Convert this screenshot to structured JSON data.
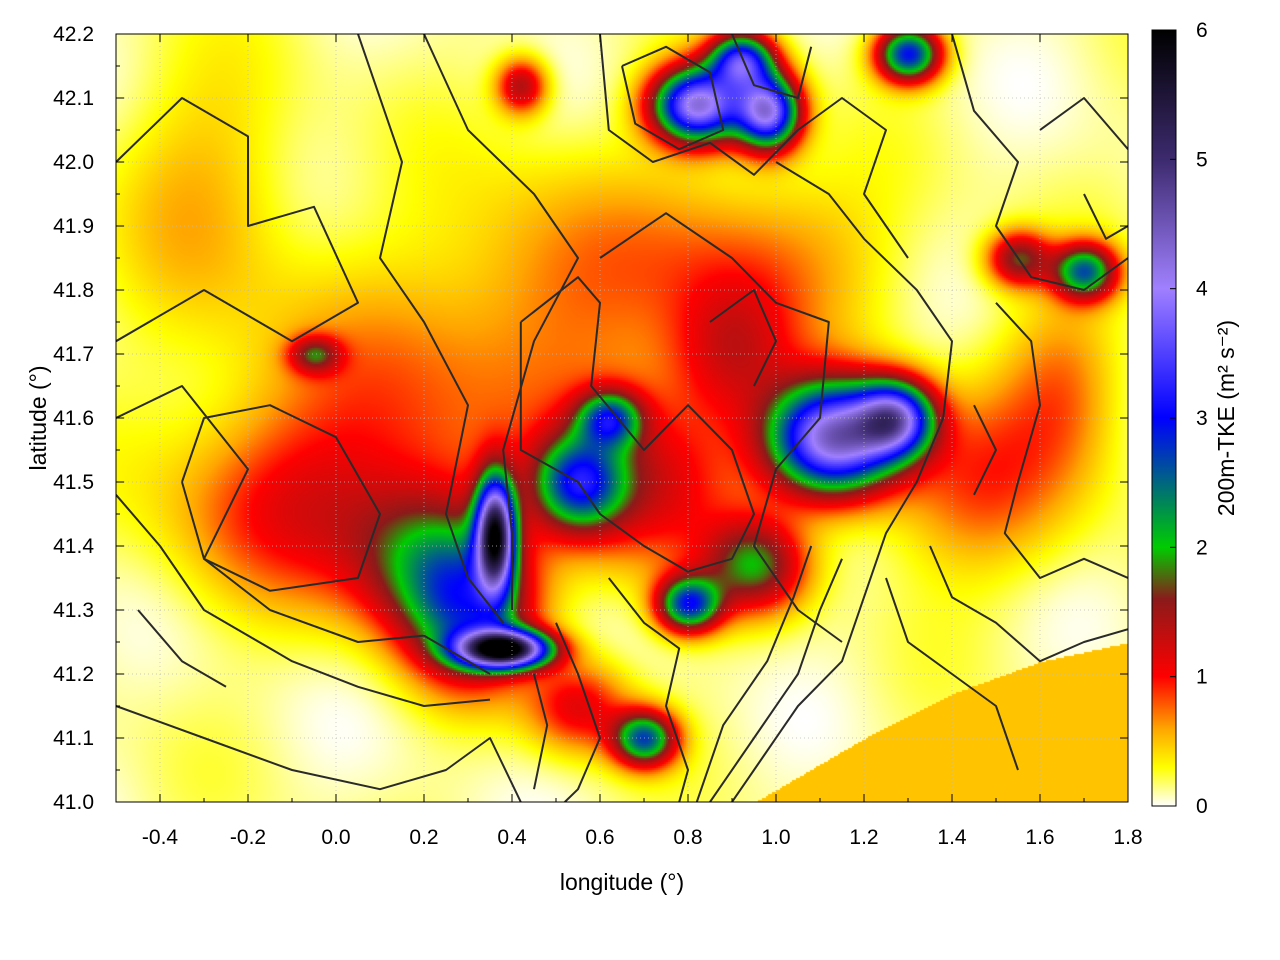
{
  "chart_data": {
    "type": "heatmap",
    "title": "",
    "xlabel": "longitude (°)",
    "ylabel": "latitude (°)",
    "colorbar_label": "200m-TKE (m² s⁻²)",
    "xlim": [
      -0.5,
      1.8
    ],
    "ylim": [
      41.0,
      42.2
    ],
    "x_ticks": [
      -0.4,
      -0.2,
      0.0,
      0.2,
      0.4,
      0.6,
      0.8,
      1.0,
      1.2,
      1.4,
      1.6,
      1.8
    ],
    "x_tick_labels": [
      "-0.4",
      "-0.2",
      "0.0",
      "0.2",
      "0.4",
      "0.6",
      "0.8",
      "1.0",
      "1.2",
      "1.4",
      "1.6",
      "1.8"
    ],
    "y_ticks": [
      41.0,
      41.1,
      41.2,
      41.3,
      41.4,
      41.5,
      41.6,
      41.7,
      41.8,
      41.9,
      42.0,
      42.1,
      42.2
    ],
    "y_tick_labels": [
      "41.0",
      "41.1",
      "41.2",
      "41.3",
      "41.4",
      "41.5",
      "41.6",
      "41.7",
      "41.8",
      "41.9",
      "42.0",
      "42.1",
      "42.2"
    ],
    "colorbar_range": [
      0,
      6
    ],
    "colorbar_ticks": [
      0,
      1,
      2,
      3,
      4,
      5,
      6
    ],
    "colorbar_tick_labels": [
      "0",
      "1",
      "2",
      "3",
      "4",
      "5",
      "6"
    ],
    "colormap": [
      {
        "v": 0.0,
        "color": "#ffffff"
      },
      {
        "v": 0.3,
        "color": "#ffff00"
      },
      {
        "v": 0.6,
        "color": "#ffa500"
      },
      {
        "v": 1.0,
        "color": "#ff0000"
      },
      {
        "v": 1.6,
        "color": "#8b1a1a"
      },
      {
        "v": 2.0,
        "color": "#00cc00"
      },
      {
        "v": 3.0,
        "color": "#0000ff"
      },
      {
        "v": 4.0,
        "color": "#a080ff"
      },
      {
        "v": 5.0,
        "color": "#3c2a6e"
      },
      {
        "v": 6.0,
        "color": "#000000"
      }
    ],
    "grid": true,
    "sea_region": {
      "value": 0.5,
      "boundary": [
        [
          0.95,
          41.0
        ],
        [
          1.2,
          41.1
        ],
        [
          1.4,
          41.17
        ],
        [
          1.6,
          41.22
        ],
        [
          1.8,
          41.25
        ]
      ]
    },
    "hotspots": [
      {
        "lon": 0.38,
        "lat": 41.24,
        "value": 5.5,
        "sx": 0.07,
        "sy": 0.02
      },
      {
        "lon": 0.36,
        "lat": 41.42,
        "value": 4.8,
        "sx": 0.03,
        "sy": 0.06
      },
      {
        "lon": 0.3,
        "lat": 41.3,
        "value": 2.0,
        "sx": 0.1,
        "sy": 0.08
      },
      {
        "lon": 0.55,
        "lat": 41.5,
        "value": 2.2,
        "sx": 0.07,
        "sy": 0.05
      },
      {
        "lon": 1.13,
        "lat": 41.57,
        "value": 4.2,
        "sx": 0.1,
        "sy": 0.06
      },
      {
        "lon": 1.27,
        "lat": 41.6,
        "value": 3.2,
        "sx": 0.06,
        "sy": 0.04
      },
      {
        "lon": 0.82,
        "lat": 42.09,
        "value": 4.0,
        "sx": 0.07,
        "sy": 0.04
      },
      {
        "lon": 0.98,
        "lat": 42.08,
        "value": 3.8,
        "sx": 0.05,
        "sy": 0.04
      },
      {
        "lon": 0.92,
        "lat": 42.16,
        "value": 3.0,
        "sx": 0.05,
        "sy": 0.03
      },
      {
        "lon": 1.3,
        "lat": 42.17,
        "value": 2.8,
        "sx": 0.05,
        "sy": 0.03
      },
      {
        "lon": 0.8,
        "lat": 41.31,
        "value": 2.6,
        "sx": 0.05,
        "sy": 0.03
      },
      {
        "lon": 0.95,
        "lat": 41.37,
        "value": 1.6,
        "sx": 0.08,
        "sy": 0.05
      },
      {
        "lon": 0.7,
        "lat": 41.1,
        "value": 2.4,
        "sx": 0.05,
        "sy": 0.03
      },
      {
        "lon": 1.7,
        "lat": 41.83,
        "value": 2.3,
        "sx": 0.05,
        "sy": 0.03
      },
      {
        "lon": 1.55,
        "lat": 41.85,
        "value": 1.5,
        "sx": 0.05,
        "sy": 0.03
      },
      {
        "lon": 0.62,
        "lat": 41.6,
        "value": 2.0,
        "sx": 0.05,
        "sy": 0.03
      },
      {
        "lon": 0.42,
        "lat": 42.12,
        "value": 1.3,
        "sx": 0.04,
        "sy": 0.03
      },
      {
        "lon": -0.05,
        "lat": 41.7,
        "value": 1.2,
        "sx": 0.04,
        "sy": 0.02
      },
      {
        "lon": 0.2,
        "lat": 41.38,
        "value": 1.3,
        "sx": 0.12,
        "sy": 0.08
      },
      {
        "lon": -0.1,
        "lat": 41.45,
        "value": 0.7,
        "sx": 0.2,
        "sy": 0.1
      },
      {
        "lon": 0.1,
        "lat": 41.6,
        "value": 0.6,
        "sx": 0.25,
        "sy": 0.15
      },
      {
        "lon": 0.7,
        "lat": 41.5,
        "value": 1.1,
        "sx": 0.15,
        "sy": 0.1
      },
      {
        "lon": 0.95,
        "lat": 41.85,
        "value": 0.6,
        "sx": 0.2,
        "sy": 0.1
      },
      {
        "lon": 0.5,
        "lat": 41.8,
        "value": 0.5,
        "sx": 0.2,
        "sy": 0.15
      },
      {
        "lon": 1.45,
        "lat": 41.5,
        "value": 0.7,
        "sx": 0.15,
        "sy": 0.1
      },
      {
        "lon": 1.65,
        "lat": 41.65,
        "value": 0.6,
        "sx": 0.1,
        "sy": 0.1
      },
      {
        "lon": 0.55,
        "lat": 41.15,
        "value": 1.0,
        "sx": 0.08,
        "sy": 0.05
      },
      {
        "lon": -0.3,
        "lat": 41.95,
        "value": 0.4,
        "sx": 0.15,
        "sy": 0.15
      },
      {
        "lon": 0.9,
        "lat": 41.7,
        "value": 0.9,
        "sx": 0.1,
        "sy": 0.08
      }
    ],
    "contours": [
      [
        [
          -0.5,
          42.0
        ],
        [
          -0.35,
          42.1
        ],
        [
          -0.2,
          42.04
        ],
        [
          -0.2,
          41.9
        ],
        [
          -0.05,
          41.93
        ],
        [
          0.05,
          41.78
        ],
        [
          -0.1,
          41.72
        ],
        [
          -0.3,
          41.8
        ],
        [
          -0.5,
          41.72
        ]
      ],
      [
        [
          -0.5,
          41.6
        ],
        [
          -0.35,
          41.65
        ],
        [
          -0.2,
          41.52
        ],
        [
          -0.3,
          41.38
        ],
        [
          -0.15,
          41.3
        ],
        [
          0.05,
          41.25
        ],
        [
          0.2,
          41.26
        ],
        [
          0.35,
          41.2
        ]
      ],
      [
        [
          -0.5,
          41.48
        ],
        [
          -0.4,
          41.4
        ],
        [
          -0.3,
          41.3
        ],
        [
          -0.1,
          41.22
        ],
        [
          0.05,
          41.18
        ],
        [
          0.2,
          41.15
        ],
        [
          0.35,
          41.16
        ]
      ],
      [
        [
          -0.35,
          41.5
        ],
        [
          -0.3,
          41.6
        ],
        [
          -0.15,
          41.62
        ],
        [
          0.0,
          41.57
        ],
        [
          0.1,
          41.45
        ],
        [
          0.05,
          41.35
        ],
        [
          -0.15,
          41.33
        ],
        [
          -0.3,
          41.38
        ],
        [
          -0.35,
          41.5
        ]
      ],
      [
        [
          -0.5,
          41.15
        ],
        [
          -0.3,
          41.1
        ],
        [
          -0.1,
          41.05
        ],
        [
          0.1,
          41.02
        ],
        [
          0.25,
          41.05
        ],
        [
          0.35,
          41.1
        ],
        [
          0.42,
          41.0
        ]
      ],
      [
        [
          0.05,
          42.2
        ],
        [
          0.15,
          42.0
        ],
        [
          0.1,
          41.85
        ],
        [
          0.2,
          41.75
        ],
        [
          0.3,
          41.62
        ],
        [
          0.25,
          41.45
        ],
        [
          0.3,
          41.35
        ],
        [
          0.38,
          41.28
        ]
      ],
      [
        [
          0.2,
          42.2
        ],
        [
          0.3,
          42.05
        ],
        [
          0.45,
          41.95
        ],
        [
          0.55,
          41.85
        ],
        [
          0.45,
          41.72
        ],
        [
          0.38,
          41.55
        ],
        [
          0.4,
          41.42
        ],
        [
          0.4,
          41.3
        ]
      ],
      [
        [
          0.42,
          41.75
        ],
        [
          0.55,
          41.82
        ],
        [
          0.6,
          41.78
        ],
        [
          0.58,
          41.65
        ],
        [
          0.7,
          41.55
        ],
        [
          0.8,
          41.62
        ],
        [
          0.9,
          41.55
        ],
        [
          0.95,
          41.45
        ],
        [
          0.9,
          41.38
        ],
        [
          0.8,
          41.36
        ],
        [
          0.7,
          41.4
        ],
        [
          0.6,
          41.45
        ],
        [
          0.55,
          41.5
        ],
        [
          0.42,
          41.55
        ],
        [
          0.42,
          41.75
        ]
      ],
      [
        [
          0.6,
          41.85
        ],
        [
          0.75,
          41.92
        ],
        [
          0.9,
          41.85
        ],
        [
          1.0,
          41.78
        ],
        [
          1.12,
          41.75
        ],
        [
          1.1,
          41.6
        ],
        [
          1.0,
          41.52
        ],
        [
          0.95,
          41.4
        ],
        [
          1.05,
          41.3
        ],
        [
          1.15,
          41.25
        ]
      ],
      [
        [
          0.6,
          42.2
        ],
        [
          0.62,
          42.05
        ],
        [
          0.72,
          42.0
        ],
        [
          0.85,
          42.03
        ],
        [
          0.95,
          41.98
        ],
        [
          1.05,
          42.05
        ],
        [
          1.15,
          42.1
        ],
        [
          1.25,
          42.05
        ],
        [
          1.2,
          41.95
        ],
        [
          1.3,
          41.85
        ]
      ],
      [
        [
          0.65,
          42.15
        ],
        [
          0.75,
          42.18
        ],
        [
          0.85,
          42.14
        ],
        [
          0.88,
          42.05
        ],
        [
          0.78,
          42.02
        ],
        [
          0.68,
          42.06
        ],
        [
          0.65,
          42.15
        ]
      ],
      [
        [
          0.9,
          42.2
        ],
        [
          0.95,
          42.12
        ],
        [
          1.05,
          42.1
        ],
        [
          1.08,
          42.18
        ]
      ],
      [
        [
          1.0,
          42.0
        ],
        [
          1.12,
          41.95
        ],
        [
          1.2,
          41.88
        ],
        [
          1.32,
          41.8
        ],
        [
          1.4,
          41.72
        ],
        [
          1.38,
          41.6
        ],
        [
          1.32,
          41.5
        ],
        [
          1.25,
          41.42
        ],
        [
          1.2,
          41.32
        ],
        [
          1.15,
          41.22
        ],
        [
          1.05,
          41.15
        ],
        [
          0.95,
          41.05
        ],
        [
          0.9,
          41.0
        ]
      ],
      [
        [
          1.4,
          42.2
        ],
        [
          1.45,
          42.08
        ],
        [
          1.55,
          42.0
        ],
        [
          1.5,
          41.9
        ],
        [
          1.58,
          41.82
        ],
        [
          1.7,
          41.8
        ],
        [
          1.8,
          41.85
        ]
      ],
      [
        [
          1.5,
          41.78
        ],
        [
          1.58,
          41.72
        ],
        [
          1.6,
          41.62
        ],
        [
          1.55,
          41.5
        ],
        [
          1.52,
          41.42
        ],
        [
          1.6,
          41.35
        ],
        [
          1.7,
          41.38
        ],
        [
          1.8,
          41.35
        ]
      ],
      [
        [
          1.35,
          41.4
        ],
        [
          1.4,
          41.32
        ],
        [
          1.5,
          41.28
        ],
        [
          1.6,
          41.22
        ],
        [
          1.7,
          41.25
        ],
        [
          1.8,
          41.27
        ]
      ],
      [
        [
          1.25,
          41.35
        ],
        [
          1.3,
          41.25
        ],
        [
          1.4,
          41.2
        ],
        [
          1.5,
          41.15
        ],
        [
          1.55,
          41.05
        ]
      ],
      [
        [
          0.85,
          41.0
        ],
        [
          0.95,
          41.1
        ],
        [
          1.05,
          41.2
        ],
        [
          1.1,
          41.3
        ],
        [
          1.15,
          41.38
        ]
      ],
      [
        [
          0.82,
          41.0
        ],
        [
          0.88,
          41.12
        ],
        [
          0.98,
          41.22
        ],
        [
          1.04,
          41.32
        ],
        [
          1.08,
          41.4
        ]
      ],
      [
        [
          0.62,
          41.35
        ],
        [
          0.7,
          41.28
        ],
        [
          0.78,
          41.24
        ],
        [
          0.75,
          41.15
        ],
        [
          0.8,
          41.05
        ],
        [
          0.78,
          41.0
        ]
      ],
      [
        [
          0.5,
          41.28
        ],
        [
          0.55,
          41.2
        ],
        [
          0.6,
          41.1
        ],
        [
          0.55,
          41.02
        ],
        [
          0.52,
          41.0
        ]
      ],
      [
        [
          0.45,
          41.2
        ],
        [
          0.48,
          41.12
        ],
        [
          0.45,
          41.02
        ]
      ],
      [
        [
          1.6,
          42.05
        ],
        [
          1.7,
          42.1
        ],
        [
          1.8,
          42.02
        ]
      ],
      [
        [
          1.7,
          41.95
        ],
        [
          1.75,
          41.88
        ],
        [
          1.8,
          41.9
        ]
      ],
      [
        [
          0.85,
          41.75
        ],
        [
          0.95,
          41.8
        ],
        [
          1.0,
          41.72
        ],
        [
          0.95,
          41.65
        ]
      ],
      [
        [
          -0.45,
          41.3
        ],
        [
          -0.35,
          41.22
        ],
        [
          -0.25,
          41.18
        ]
      ],
      [
        [
          1.45,
          41.62
        ],
        [
          1.5,
          41.55
        ],
        [
          1.45,
          41.48
        ]
      ]
    ]
  }
}
